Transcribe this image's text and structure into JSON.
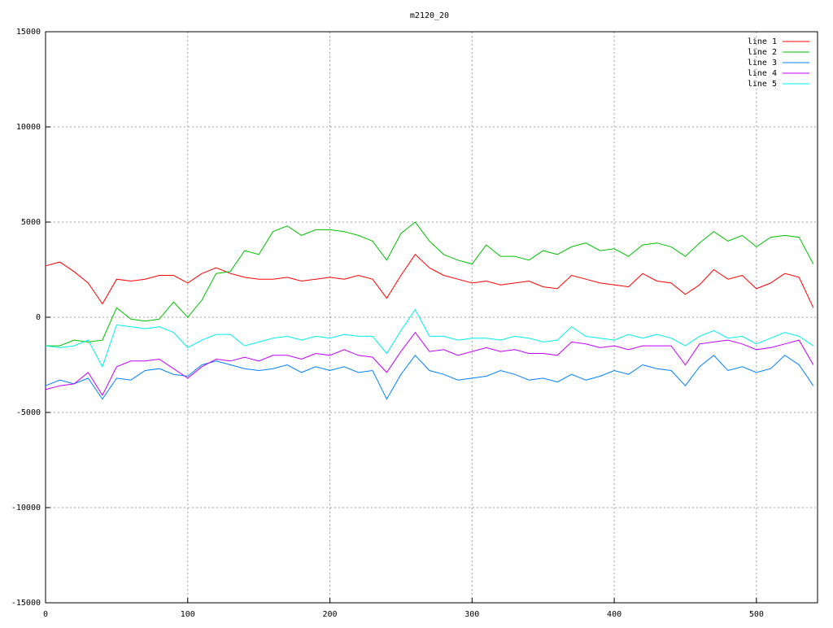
{
  "chart_data": {
    "type": "line",
    "title": "m2120_20",
    "x": [
      0,
      10,
      20,
      30,
      40,
      50,
      60,
      70,
      80,
      90,
      100,
      110,
      120,
      130,
      140,
      150,
      160,
      170,
      180,
      190,
      200,
      210,
      220,
      230,
      240,
      250,
      260,
      270,
      280,
      290,
      300,
      310,
      320,
      330,
      340,
      350,
      360,
      370,
      380,
      390,
      400,
      410,
      420,
      430,
      440,
      450,
      460,
      470,
      480,
      490,
      500,
      510,
      520,
      530,
      540
    ],
    "series": [
      {
        "name": "line 1",
        "color": "#ff0000",
        "values": [
          2700,
          2900,
          2400,
          1800,
          700,
          2000,
          1900,
          2000,
          2200,
          2200,
          1800,
          2300,
          2600,
          2300,
          2100,
          2000,
          2000,
          2100,
          1900,
          2000,
          2100,
          2000,
          2200,
          2000,
          1000,
          2200,
          3300,
          2600,
          2200,
          2000,
          1800,
          1900,
          1700,
          1800,
          1900,
          1600,
          1500,
          2200,
          2000,
          1800,
          1700,
          1600,
          2300,
          1900,
          1800,
          1200,
          1700,
          2500,
          2000,
          2200,
          1500,
          1800,
          2300,
          2100,
          500
        ]
      },
      {
        "name": "line 2",
        "color": "#00c000",
        "values": [
          -1500,
          -1500,
          -1200,
          -1300,
          -1200,
          500,
          -100,
          -200,
          -100,
          800,
          0,
          900,
          2300,
          2400,
          3500,
          3300,
          4500,
          4800,
          4300,
          4600,
          4600,
          4500,
          4300,
          4000,
          3000,
          4400,
          5000,
          4000,
          3300,
          3000,
          2800,
          3800,
          3200,
          3200,
          3000,
          3500,
          3300,
          3700,
          3900,
          3500,
          3600,
          3200,
          3800,
          3900,
          3700,
          3200,
          3900,
          4500,
          4000,
          4300,
          3700,
          4200,
          4300,
          4200,
          2800
        ]
      },
      {
        "name": "line 3",
        "color": "#0080ff",
        "values": [
          -3600,
          -3300,
          -3500,
          -3200,
          -4300,
          -3200,
          -3300,
          -2800,
          -2700,
          -3000,
          -3100,
          -2500,
          -2300,
          -2500,
          -2700,
          -2800,
          -2700,
          -2500,
          -2900,
          -2600,
          -2800,
          -2600,
          -2900,
          -2800,
          -4300,
          -3000,
          -2000,
          -2800,
          -3000,
          -3300,
          -3200,
          -3100,
          -2800,
          -3000,
          -3300,
          -3200,
          -3400,
          -3000,
          -3300,
          -3100,
          -2800,
          -3000,
          -2500,
          -2700,
          -2800,
          -3600,
          -2600,
          -2000,
          -2800,
          -2600,
          -2900,
          -2700,
          -2000,
          -2500,
          -3600
        ]
      },
      {
        "name": "line 4",
        "color": "#c000ff",
        "values": [
          -3800,
          -3600,
          -3500,
          -2900,
          -4100,
          -2600,
          -2300,
          -2300,
          -2200,
          -2700,
          -3200,
          -2600,
          -2200,
          -2300,
          -2100,
          -2300,
          -2000,
          -2000,
          -2200,
          -1900,
          -2000,
          -1700,
          -2000,
          -2100,
          -2900,
          -1800,
          -800,
          -1800,
          -1700,
          -2000,
          -1800,
          -1600,
          -1800,
          -1700,
          -1900,
          -1900,
          -2000,
          -1300,
          -1400,
          -1600,
          -1500,
          -1700,
          -1500,
          -1500,
          -1500,
          -2500,
          -1400,
          -1300,
          -1200,
          -1400,
          -1700,
          -1600,
          -1400,
          -1200,
          -2500
        ]
      },
      {
        "name": "line 5",
        "color": "#00eeee",
        "values": [
          -1500,
          -1600,
          -1500,
          -1200,
          -2600,
          -400,
          -500,
          -600,
          -500,
          -800,
          -1600,
          -1200,
          -900,
          -900,
          -1500,
          -1300,
          -1100,
          -1000,
          -1200,
          -1000,
          -1100,
          -900,
          -1000,
          -1000,
          -1900,
          -700,
          400,
          -1000,
          -1000,
          -1200,
          -1100,
          -1100,
          -1200,
          -1000,
          -1100,
          -1300,
          -1200,
          -500,
          -1000,
          -1100,
          -1200,
          -900,
          -1100,
          -900,
          -1100,
          -1500,
          -1000,
          -700,
          -1100,
          -1000,
          -1400,
          -1100,
          -800,
          -1000,
          -1500
        ]
      }
    ],
    "xlim": [
      0,
      543
    ],
    "xticks": [
      0,
      100,
      200,
      300,
      400,
      500
    ],
    "ylim": [
      -15000,
      15000
    ],
    "yticks": [
      -15000,
      -10000,
      -5000,
      0,
      5000,
      10000,
      15000
    ],
    "grid": true,
    "legend": "top-right"
  }
}
